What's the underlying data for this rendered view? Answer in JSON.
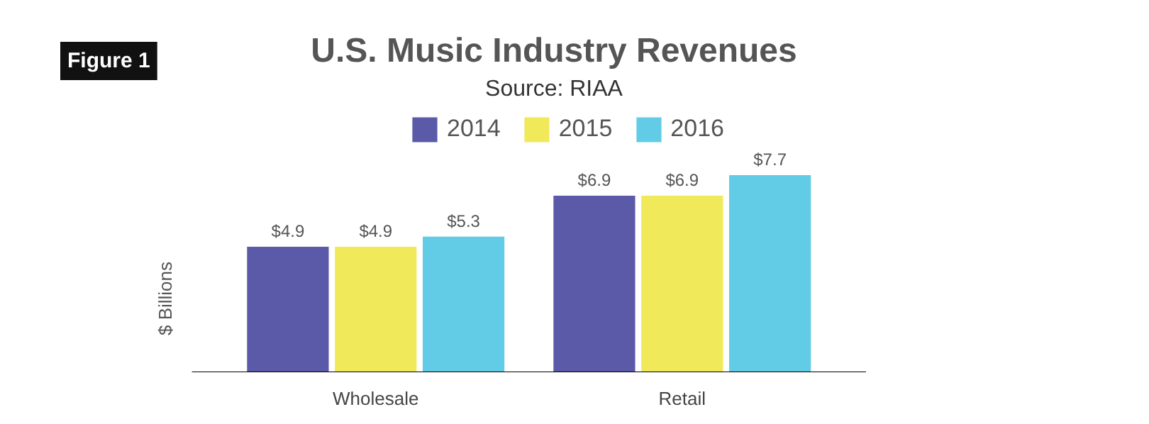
{
  "chart_data": {
    "type": "bar",
    "title": "U.S. Music Industry Revenues",
    "subtitle": "Source: RIAA",
    "ylabel": "$ Billions",
    "annotations": [
      "Figure 1"
    ],
    "categories": [
      "Wholesale",
      "Retail"
    ],
    "series": [
      {
        "name": "2014",
        "color": "#5b5aa8",
        "values": [
          4.9,
          6.9
        ],
        "value_labels": [
          "$4.9",
          "$6.9"
        ]
      },
      {
        "name": "2015",
        "color": "#f0e95a",
        "values": [
          4.9,
          6.9
        ],
        "value_labels": [
          "$4.9",
          "$6.9"
        ]
      },
      {
        "name": "2016",
        "color": "#62cbe6",
        "values": [
          5.3,
          7.7
        ],
        "value_labels": [
          "$5.3",
          "$7.7"
        ]
      }
    ],
    "grid": false,
    "legend": "top"
  }
}
